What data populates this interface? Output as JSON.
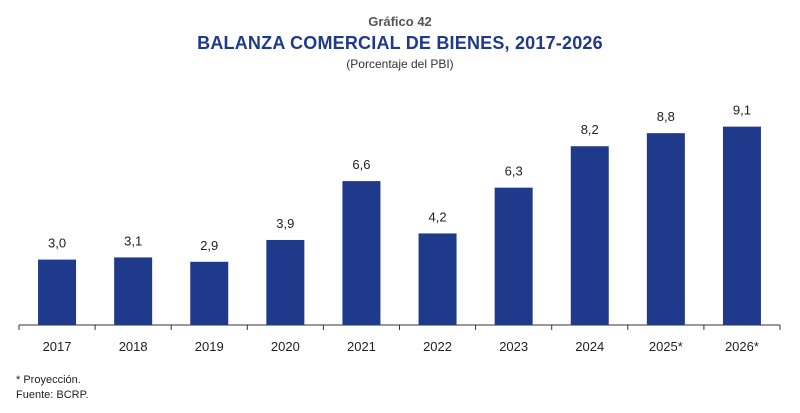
{
  "header": {
    "chart_number": "Gráfico 42",
    "title": "BALANZA COMERCIAL DE BIENES, 2017-2026",
    "subtitle": "(Porcentaje del PBI)"
  },
  "footnotes": {
    "projection": "* Proyección.",
    "source": "Fuente: BCRP."
  },
  "colors": {
    "bar": "#1f3a8a",
    "axis": "#333333"
  },
  "chart_data": {
    "type": "bar",
    "title": "BALANZA COMERCIAL DE BIENES, 2017-2026",
    "subtitle": "(Porcentaje del PBI)",
    "xlabel": "",
    "ylabel": "",
    "categories": [
      "2017",
      "2018",
      "2019",
      "2020",
      "2021",
      "2022",
      "2023",
      "2024",
      "2025*",
      "2026*"
    ],
    "values": [
      3.0,
      3.1,
      2.9,
      3.9,
      6.6,
      4.2,
      6.3,
      8.2,
      8.8,
      9.1
    ],
    "value_labels": [
      "3,0",
      "3,1",
      "2,9",
      "3,9",
      "6,6",
      "4,2",
      "6,3",
      "8,2",
      "8,8",
      "9,1"
    ],
    "ylim": [
      0,
      10
    ],
    "grid": false,
    "legend": "none"
  }
}
